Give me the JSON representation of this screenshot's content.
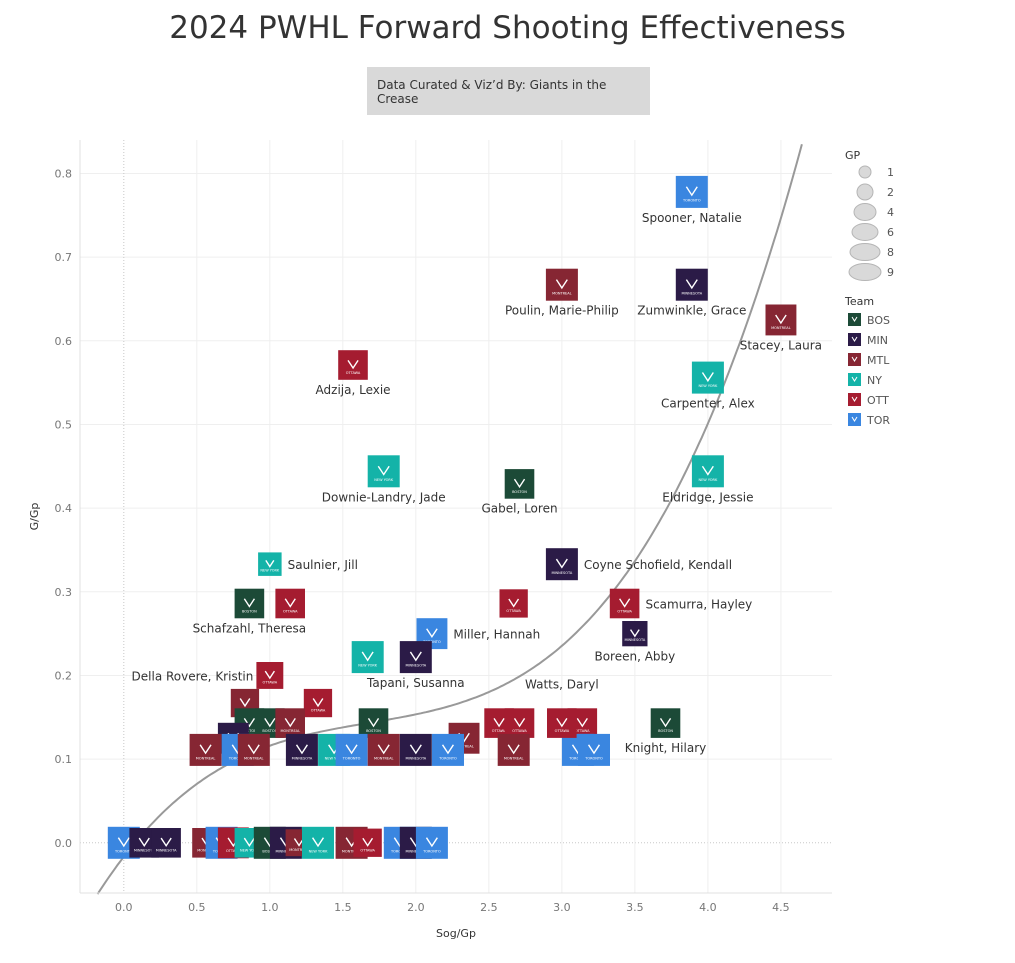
{
  "page": {
    "title": "2024 PWHL Forward Shooting Effectiveness",
    "credit": "Data Curated & Viz’d By: Giants in the Crease"
  },
  "legend": {
    "size_title": "GP",
    "size_values": [
      "1",
      "2",
      "4",
      "6",
      "8",
      "9"
    ],
    "team_title": "Team",
    "teams": [
      {
        "code": "BOS",
        "color": "#1c4a37"
      },
      {
        "code": "MIN",
        "color": "#2b1b47"
      },
      {
        "code": "MTL",
        "color": "#862633"
      },
      {
        "code": "NY",
        "color": "#14b3a8"
      },
      {
        "code": "OTT",
        "color": "#a51c30"
      },
      {
        "code": "TOR",
        "color": "#3a86e0"
      }
    ]
  },
  "chart_data": {
    "type": "scatter",
    "xlabel": "Sog/Gp",
    "ylabel": "G/Gp",
    "xlim": [
      -0.3,
      4.85
    ],
    "ylim": [
      -0.06,
      0.84
    ],
    "x_ticks": [
      "0.0",
      "0.5",
      "1.0",
      "1.5",
      "2.0",
      "2.5",
      "3.0",
      "3.5",
      "4.0",
      "4.5"
    ],
    "y_ticks": [
      "0.0",
      "0.1",
      "0.2",
      "0.3",
      "0.4",
      "0.5",
      "0.6",
      "0.7",
      "0.8"
    ],
    "trend": "cubic",
    "gridlines": true,
    "team_colors": {
      "BOS": "#1c4a37",
      "MIN": "#2b1b47",
      "MTL": "#862633",
      "NY": "#14b3a8",
      "OTT": "#a51c30",
      "TOR": "#3a86e0"
    },
    "labeled_points": [
      {
        "name": "Spooner, Natalie",
        "x": 3.89,
        "y": 0.778,
        "team": "TOR",
        "gp": 9
      },
      {
        "name": "Poulin, Marie-Philip",
        "x": 3.0,
        "y": 0.667,
        "team": "MTL",
        "gp": 9
      },
      {
        "name": "Zumwinkle, Grace",
        "x": 3.89,
        "y": 0.667,
        "team": "MIN",
        "gp": 9
      },
      {
        "name": "Stacey, Laura",
        "x": 4.5,
        "y": 0.625,
        "team": "MTL",
        "gp": 8
      },
      {
        "name": "Adzija, Lexie",
        "x": 1.57,
        "y": 0.571,
        "team": "OTT",
        "gp": 7
      },
      {
        "name": "Carpenter, Alex",
        "x": 4.0,
        "y": 0.556,
        "team": "NY",
        "gp": 9
      },
      {
        "name": "Downie-Landry, Jade",
        "x": 1.78,
        "y": 0.444,
        "team": "NY",
        "gp": 9
      },
      {
        "name": "Eldridge, Jessie",
        "x": 4.0,
        "y": 0.444,
        "team": "NY",
        "gp": 9
      },
      {
        "name": "Gabel, Loren",
        "x": 2.71,
        "y": 0.429,
        "team": "BOS",
        "gp": 7
      },
      {
        "name": "Saulnier, Jill",
        "x": 1.0,
        "y": 0.333,
        "team": "NY",
        "gp": 3
      },
      {
        "name": "Coyne Schofield, Kendall",
        "x": 3.0,
        "y": 0.333,
        "team": "MIN",
        "gp": 9
      },
      {
        "name": "Schafzahl, Theresa",
        "x": 0.86,
        "y": 0.286,
        "team": "BOS",
        "gp": 7
      },
      {
        "name": "Scamurra, Hayley",
        "x": 3.43,
        "y": 0.286,
        "team": "OTT",
        "gp": 7
      },
      {
        "name": "Miller, Hannah",
        "x": 2.11,
        "y": 0.25,
        "team": "TOR",
        "gp": 8
      },
      {
        "name": "Boreen, Abby",
        "x": 3.5,
        "y": 0.25,
        "team": "MIN",
        "gp": 4
      },
      {
        "name": "Tapani, Susanna",
        "x": 2.0,
        "y": 0.222,
        "team": "MIN",
        "gp": 9
      },
      {
        "name": "Della Rovere, Kristin",
        "x": 1.0,
        "y": 0.2,
        "team": "OTT",
        "gp": 5
      },
      {
        "name": "Watts, Daryl",
        "x": 3.0,
        "y": 0.143,
        "team": "OTT",
        "gp": 7
      },
      {
        "name": "Knight, Hilary",
        "x": 3.71,
        "y": 0.143,
        "team": "BOS",
        "gp": 7
      }
    ],
    "other_points": [
      {
        "x": 1.14,
        "y": 0.286,
        "team": "OTT",
        "gp": 7
      },
      {
        "x": 2.67,
        "y": 0.286,
        "team": "OTT",
        "gp": 6
      },
      {
        "x": 1.67,
        "y": 0.222,
        "team": "NY",
        "gp": 9
      },
      {
        "x": 0.83,
        "y": 0.167,
        "team": "MTL",
        "gp": 6
      },
      {
        "x": 1.33,
        "y": 0.167,
        "team": "OTT",
        "gp": 6
      },
      {
        "x": 0.86,
        "y": 0.143,
        "team": "BOS",
        "gp": 7
      },
      {
        "x": 1.0,
        "y": 0.143,
        "team": "BOS",
        "gp": 7
      },
      {
        "x": 1.14,
        "y": 0.143,
        "team": "MTL",
        "gp": 7
      },
      {
        "x": 1.71,
        "y": 0.143,
        "team": "BOS",
        "gp": 7
      },
      {
        "x": 2.57,
        "y": 0.143,
        "team": "OTT",
        "gp": 7
      },
      {
        "x": 2.71,
        "y": 0.143,
        "team": "OTT",
        "gp": 7
      },
      {
        "x": 3.14,
        "y": 0.143,
        "team": "OTT",
        "gp": 7
      },
      {
        "x": 2.33,
        "y": 0.125,
        "team": "MTL",
        "gp": 8
      },
      {
        "x": 0.75,
        "y": 0.125,
        "team": "MIN",
        "gp": 8
      },
      {
        "x": 0.56,
        "y": 0.111,
        "team": "MTL",
        "gp": 9
      },
      {
        "x": 0.78,
        "y": 0.111,
        "team": "TOR",
        "gp": 9
      },
      {
        "x": 0.89,
        "y": 0.111,
        "team": "MTL",
        "gp": 9
      },
      {
        "x": 1.22,
        "y": 0.111,
        "team": "MIN",
        "gp": 9
      },
      {
        "x": 1.44,
        "y": 0.111,
        "team": "NY",
        "gp": 9
      },
      {
        "x": 1.56,
        "y": 0.111,
        "team": "TOR",
        "gp": 9
      },
      {
        "x": 1.78,
        "y": 0.111,
        "team": "MTL",
        "gp": 9
      },
      {
        "x": 2.0,
        "y": 0.111,
        "team": "MIN",
        "gp": 9
      },
      {
        "x": 2.22,
        "y": 0.111,
        "team": "TOR",
        "gp": 9
      },
      {
        "x": 2.67,
        "y": 0.111,
        "team": "MTL",
        "gp": 9
      },
      {
        "x": 3.11,
        "y": 0.111,
        "team": "TOR",
        "gp": 9
      },
      {
        "x": 3.22,
        "y": 0.111,
        "team": "TOR",
        "gp": 9
      },
      {
        "x": 0.0,
        "y": 0.0,
        "team": "TOR",
        "gp": 9
      },
      {
        "x": 0.14,
        "y": 0.0,
        "team": "MIN",
        "gp": 7
      },
      {
        "x": 0.29,
        "y": 0.0,
        "team": "MIN",
        "gp": 7
      },
      {
        "x": 0.57,
        "y": 0.0,
        "team": "MTL",
        "gp": 7
      },
      {
        "x": 0.67,
        "y": 0.0,
        "team": "TOR",
        "gp": 9
      },
      {
        "x": 0.75,
        "y": 0.0,
        "team": "OTT",
        "gp": 8
      },
      {
        "x": 0.86,
        "y": 0.0,
        "team": "NY",
        "gp": 7
      },
      {
        "x": 1.0,
        "y": 0.0,
        "team": "BOS",
        "gp": 9
      },
      {
        "x": 1.11,
        "y": 0.0,
        "team": "MIN",
        "gp": 9
      },
      {
        "x": 1.2,
        "y": 0.0,
        "team": "MTL",
        "gp": 5
      },
      {
        "x": 1.33,
        "y": 0.0,
        "team": "NY",
        "gp": 9
      },
      {
        "x": 1.56,
        "y": 0.0,
        "team": "MTL",
        "gp": 9
      },
      {
        "x": 1.67,
        "y": 0.0,
        "team": "OTT",
        "gp": 6
      },
      {
        "x": 1.89,
        "y": 0.0,
        "team": "TOR",
        "gp": 9
      },
      {
        "x": 2.0,
        "y": 0.0,
        "team": "MIN",
        "gp": 9
      },
      {
        "x": 2.1,
        "y": 0.0,
        "team": "OTT",
        "gp": 3
      },
      {
        "x": 2.11,
        "y": 0.0,
        "team": "TOR",
        "gp": 9
      }
    ]
  }
}
